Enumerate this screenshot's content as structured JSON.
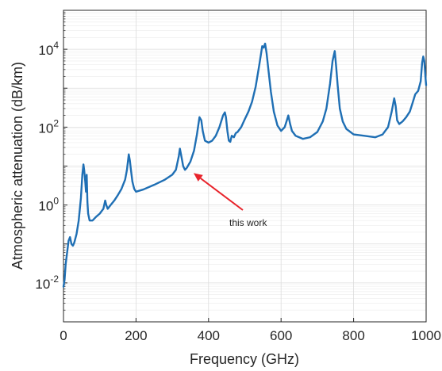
{
  "chart_data": {
    "type": "line",
    "xlabel": "Frequency (GHz)",
    "ylabel": "Atmospheric attenuation (dB/km)",
    "xlim": [
      0,
      1000
    ],
    "ylim_log10": [
      -3,
      5
    ],
    "y_scale": "log",
    "x_ticks": [
      0,
      200,
      400,
      600,
      800,
      1000
    ],
    "x_tick_labels": [
      "0",
      "200",
      "400",
      "600",
      "800",
      "1000"
    ],
    "y_ticks": [
      0.01,
      1,
      100,
      10000
    ],
    "y_tick_labels": [
      {
        "base": "10",
        "exp": "-2"
      },
      {
        "base": "10",
        "exp": "0"
      },
      {
        "base": "10",
        "exp": "2"
      },
      {
        "base": "10",
        "exp": "4"
      }
    ],
    "grid": true,
    "series_color": "#1f6fb4",
    "series": [
      {
        "x": [
          0,
          3,
          6,
          10,
          14,
          18,
          22,
          26,
          30,
          36,
          42,
          48,
          52,
          55,
          57,
          60,
          62,
          64,
          66,
          68,
          72,
          80,
          90,
          100,
          110,
          115,
          118,
          122,
          130,
          140,
          150,
          160,
          170,
          175,
          180,
          183,
          186,
          190,
          195,
          200,
          220,
          250,
          280,
          300,
          310,
          318,
          321,
          325,
          330,
          335,
          340,
          350,
          360,
          368,
          375,
          380,
          384,
          390,
          400,
          410,
          420,
          430,
          440,
          445,
          448,
          452,
          456,
          460,
          464,
          470,
          475,
          480,
          490,
          500,
          510,
          520,
          530,
          540,
          548,
          552,
          556,
          560,
          566,
          572,
          580,
          590,
          600,
          610,
          616,
          620,
          625,
          630,
          640,
          660,
          680,
          700,
          715,
          725,
          735,
          742,
          748,
          752,
          756,
          762,
          770,
          780,
          800,
          830,
          860,
          880,
          895,
          905,
          912,
          916,
          920,
          926,
          935,
          945,
          955,
          962,
          970,
          978,
          985,
          989,
          992,
          995,
          998,
          1000
        ],
        "y": [
          0.008,
          0.012,
          0.03,
          0.06,
          0.12,
          0.15,
          0.1,
          0.09,
          0.11,
          0.18,
          0.4,
          1.5,
          6,
          11,
          8,
          4,
          2.2,
          6,
          1.2,
          0.6,
          0.4,
          0.4,
          0.5,
          0.6,
          0.8,
          1.3,
          1.0,
          0.8,
          1.0,
          1.3,
          1.8,
          2.6,
          4.5,
          8,
          20,
          14,
          8,
          4,
          2.6,
          2.2,
          2.5,
          3.3,
          4.5,
          6,
          8,
          18,
          28,
          18,
          10,
          8,
          9,
          13,
          25,
          65,
          180,
          150,
          80,
          45,
          40,
          45,
          60,
          100,
          200,
          240,
          180,
          80,
          45,
          42,
          60,
          55,
          70,
          75,
          100,
          160,
          250,
          450,
          1100,
          4000,
          12000,
          11000,
          14000,
          8000,
          2500,
          800,
          250,
          110,
          80,
          100,
          150,
          200,
          120,
          80,
          60,
          50,
          55,
          75,
          140,
          300,
          1300,
          5000,
          9000,
          3500,
          1200,
          300,
          140,
          90,
          65,
          60,
          55,
          65,
          100,
          250,
          550,
          350,
          150,
          120,
          140,
          180,
          250,
          400,
          700,
          850,
          1500,
          4500,
          6500,
          5000,
          2000,
          1200
        ]
      }
    ],
    "annotations": [
      {
        "text": "this work",
        "arrow_to_x": 350,
        "arrow_to_y": 8
      }
    ]
  }
}
